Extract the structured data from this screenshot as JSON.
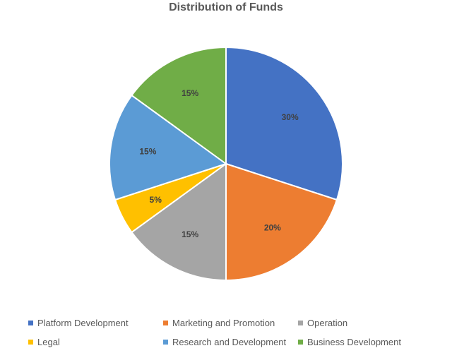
{
  "chart_data": {
    "type": "pie",
    "title": "Distribution of Funds",
    "slices": [
      {
        "label": "Platform Development",
        "value": 30,
        "display": "30%",
        "color": "#4472C4"
      },
      {
        "label": "Marketing and Promotion",
        "value": 20,
        "display": "20%",
        "color": "#ED7D31"
      },
      {
        "label": "Operation",
        "value": 15,
        "display": "15%",
        "color": "#A5A5A5"
      },
      {
        "label": "Legal",
        "value": 5,
        "display": "5%",
        "color": "#FFC000"
      },
      {
        "label": "Research and Development",
        "value": 15,
        "display": "15%",
        "color": "#5B9BD5"
      },
      {
        "label": "Business Development",
        "value": 15,
        "display": "15%",
        "color": "#70AD47"
      }
    ],
    "legend_position": "bottom",
    "start_angle_deg": 0,
    "direction": "clockwise"
  }
}
